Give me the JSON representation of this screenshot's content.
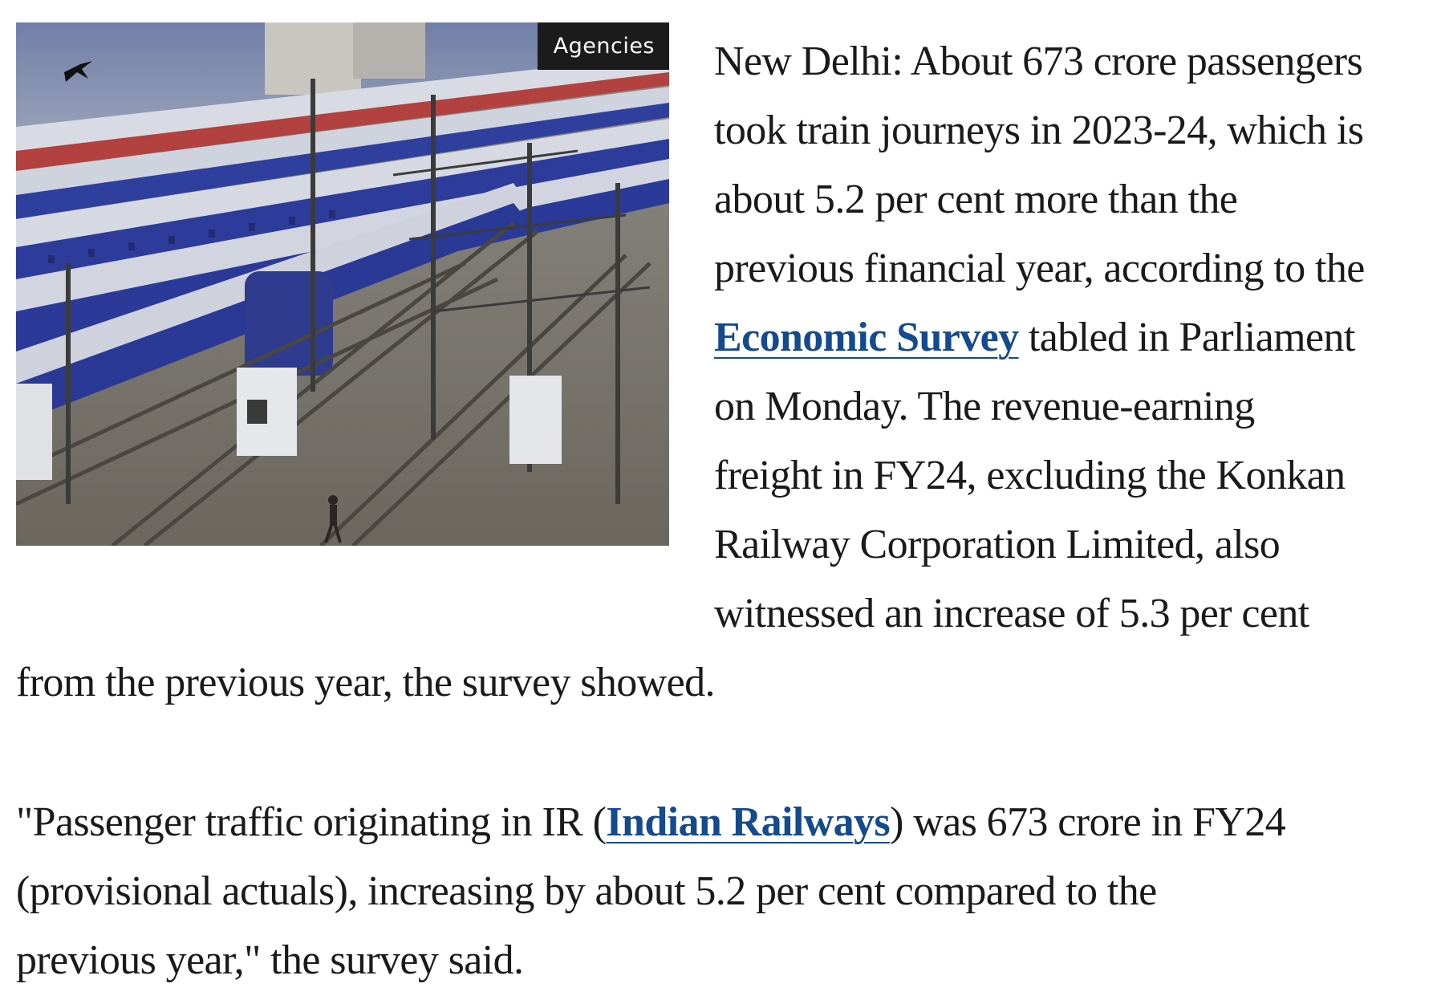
{
  "figure": {
    "image_alt_icon": "railway-yard-photo",
    "credit": "Agencies"
  },
  "paragraph1": {
    "line1": "New Delhi: About 673 crore passengers",
    "line2": "took train journeys in 2023-24, which is",
    "line3": "about 5.2 per cent more than the",
    "line4": "previous financial year, according to the",
    "line5_link": "Economic Survey",
    "line5_rest": " tabled in Parliament",
    "line6": "on Monday. The revenue-earning",
    "line7": "freight in FY24, excluding the Konkan",
    "line8": "Railway Corporation Limited, also",
    "line9": "witnessed an increase of 5.3 per cent",
    "line10": "from the previous year, the survey showed."
  },
  "paragraph2": {
    "line1_pre": "\"Passenger traffic originating in IR (",
    "line1_link": "Indian Railways",
    "line1_post": ") was 673 crore in FY24",
    "line2": "(provisional actuals), increasing by about 5.2 per cent compared to the",
    "line3": "previous year,\" the survey said."
  },
  "colors": {
    "link": "#144a8e",
    "text": "#1a1a1a"
  }
}
